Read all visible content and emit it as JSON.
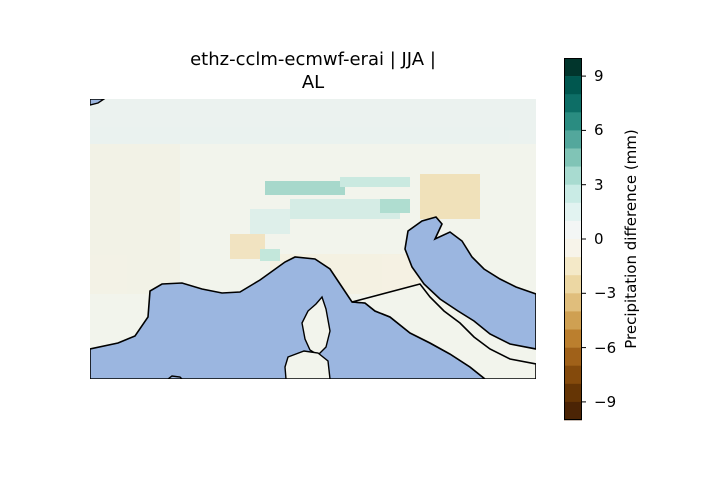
{
  "title_line1": "ethz-cclm-ecmwf-erai | JJA |",
  "title_line2": "AL",
  "colorbar": {
    "label": "Precipitation difference (mm)",
    "ticks": [
      "9",
      "6",
      "3",
      "0",
      "−3",
      "−6",
      "−9"
    ],
    "tick_values": [
      9,
      6,
      3,
      0,
      -3,
      -6,
      -9
    ],
    "range": [
      -10,
      10
    ],
    "levels": 20,
    "colors_top_to_bottom": [
      "#01352c",
      "#00574f",
      "#0d6e66",
      "#2a8c81",
      "#53a79c",
      "#80c4b6",
      "#a8dbd0",
      "#c9ebe5",
      "#e2f3f1",
      "#f3f6f5",
      "#f7f4ea",
      "#f4e9c8",
      "#ecd7a3",
      "#e0be7c",
      "#cfa052",
      "#bb7f2e",
      "#a06119",
      "#844a0c",
      "#653505",
      "#4b2405"
    ]
  },
  "map": {
    "region": "AL",
    "sea_color": "#9bb6e0",
    "land_base_color": "#eef3ef",
    "coastline_color": "#000000"
  }
}
